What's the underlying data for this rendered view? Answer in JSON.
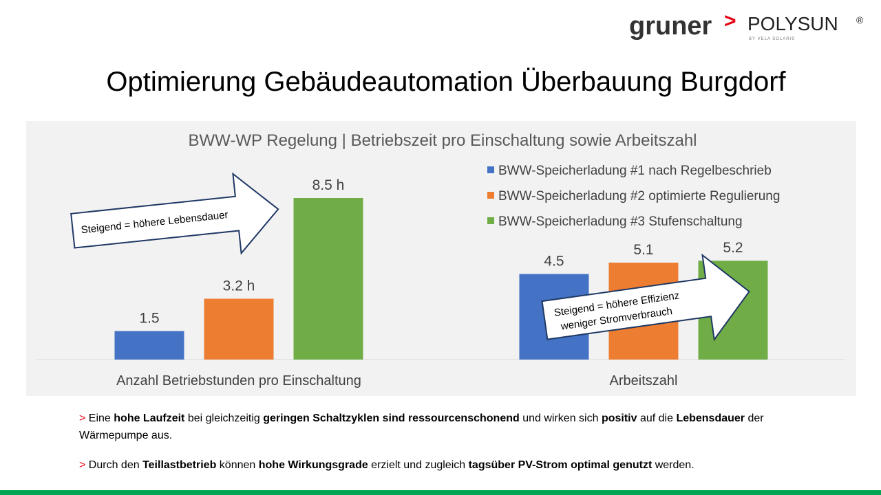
{
  "header": {
    "logo_left": "gruner",
    "logo_sep": ">",
    "logo_right": "POLYSUN",
    "logo_mark": "®",
    "logo_sub": "BY VELA SOLARIS"
  },
  "slide_title": "Optimierung Gebäudeautomation Überbauung Burgdorf",
  "chart_data": {
    "type": "bar",
    "title": "BWW-WP Regelung | Betriebszeit pro Einschaltung sowie Arbeitszahl",
    "categories": [
      "Anzahl Betriebstunden pro Einschaltung",
      "Arbeitszahl"
    ],
    "series": [
      {
        "name": "BWW-Speicherladung #1 nach Regelbeschrieb",
        "color": "#4472c4",
        "values": [
          1.5,
          4.5
        ],
        "value_labels": [
          "1.5",
          "4.5"
        ]
      },
      {
        "name": "BWW-Speicherladung #2 optimierte Regulierung",
        "color": "#ed7d31",
        "values": [
          3.2,
          5.1
        ],
        "value_labels": [
          "3.2 h",
          "5.1"
        ]
      },
      {
        "name": "BWW-Speicherladung #3 Stufenschaltung",
        "color": "#70ad47",
        "values": [
          8.5,
          5.2
        ],
        "value_labels": [
          "8.5 h",
          "5.2"
        ]
      }
    ],
    "annotations": [
      [
        "Steigend = höhere Lebensdauer"
      ],
      [
        "Steigend = höhere Effizienz",
        "weniger Stromverbrauch"
      ]
    ],
    "legend": "top-right"
  },
  "bullets": [
    {
      "marker": ">",
      "segments": [
        {
          "text": "Eine ",
          "bold": false
        },
        {
          "text": "hohe Laufzeit",
          "bold": true
        },
        {
          "text": " bei gleichzeitig ",
          "bold": false
        },
        {
          "text": "geringen Schaltzyklen sind ressourcenschonend",
          "bold": true
        },
        {
          "text": " und wirken sich ",
          "bold": false
        },
        {
          "text": "positiv",
          "bold": true
        },
        {
          "text": " auf die ",
          "bold": false
        },
        {
          "text": "Lebensdauer",
          "bold": true
        },
        {
          "text": " der Wärmepumpe aus.",
          "bold": false
        }
      ]
    },
    {
      "marker": ">",
      "segments": [
        {
          "text": "Durch den ",
          "bold": false
        },
        {
          "text": "Teillastbetrieb",
          "bold": true
        },
        {
          "text": " können ",
          "bold": false
        },
        {
          "text": "hohe Wirkungsgrade",
          "bold": true
        },
        {
          "text": " erzielt und zugleich ",
          "bold": false
        },
        {
          "text": "tagsüber PV-Strom optimal genutzt",
          "bold": true
        },
        {
          "text": " werden.",
          "bold": false
        }
      ]
    }
  ]
}
